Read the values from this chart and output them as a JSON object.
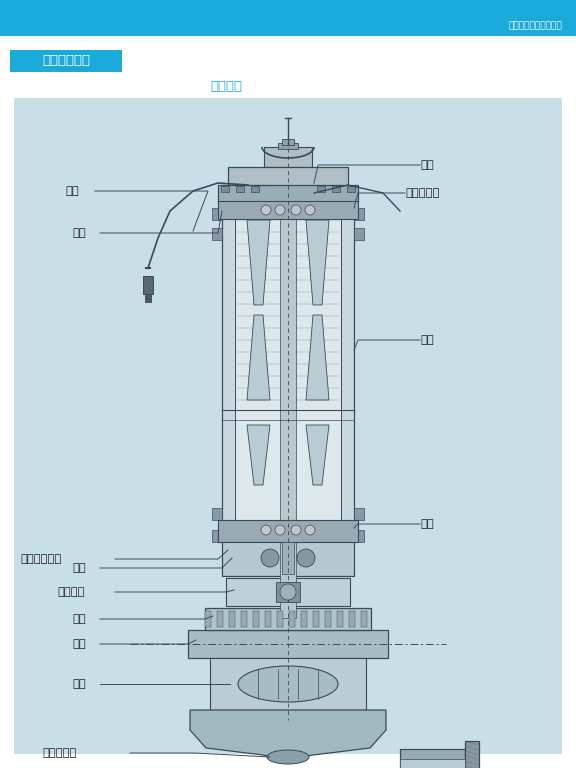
{
  "header_color": "#1aabdb",
  "header_text": "引领中国泵工业的崛起",
  "section_label": "四、结构说明",
  "section_bg": "#1aabdb",
  "subtitle": "结构图：",
  "diagram_bg": "#c8dfe8",
  "line_color": "#3a4a5a",
  "page_bg": "#ffffff",
  "label_color_dark": "#1a1a1a",
  "label_color_blue": "#1aabdb"
}
